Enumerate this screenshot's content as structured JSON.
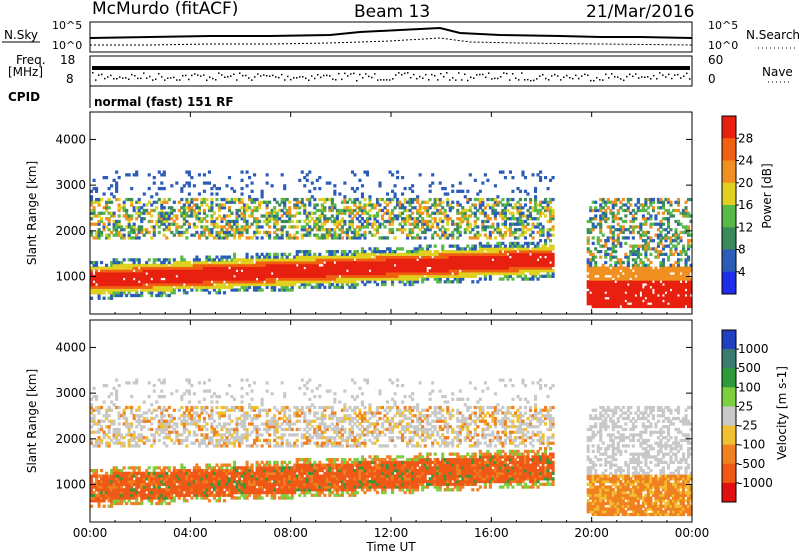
{
  "header": {
    "station": "McMurdo (fitACF)",
    "beam": "Beam 13",
    "date": "21/Mar/2016"
  },
  "noise_panel": {
    "left_label": "N.Sky",
    "right_label": "N.Search",
    "left_ticks": [
      "10^5",
      "10^0"
    ],
    "right_ticks": [
      "10^5",
      "10^0"
    ]
  },
  "freq_panel": {
    "label_line1": "Freq.",
    "label_line2": "[MHz]",
    "left_ticks": [
      "18",
      "8"
    ],
    "right_label": "Nave",
    "right_ticks": [
      "60",
      "0"
    ]
  },
  "cpid": {
    "label": "CPID",
    "value": "normal (fast) 151 RF"
  },
  "chart_data": [
    {
      "type": "heatmap",
      "panel": "power",
      "ylabel": "Slant Range [km]",
      "ylim": [
        180,
        4600
      ],
      "yticks": [
        1000,
        2000,
        3000,
        4000
      ],
      "xlim": [
        0,
        24
      ],
      "colorbar_label": "Power [dB]",
      "colorbar_ticks": [
        "4",
        "8",
        "12",
        "16",
        "20",
        "24",
        "28"
      ],
      "colors": [
        "#1f2ee8",
        "#2a5cb8",
        "#3a8a5a",
        "#58b848",
        "#e0d020",
        "#f09020",
        "#f06010",
        "#e82010"
      ],
      "bands": [
        {
          "t": [
            0.0,
            18.3
          ],
          "r": [
            620,
            1500
          ],
          "desc": "strong band rising"
        },
        {
          "t": [
            0.0,
            18.3
          ],
          "r": [
            1800,
            2700
          ],
          "desc": "upper layer"
        },
        {
          "t": [
            20.5,
            24.0
          ],
          "r": [
            300,
            1400
          ],
          "desc": "late strong band"
        }
      ]
    },
    {
      "type": "heatmap",
      "panel": "velocity",
      "ylabel": "Slant Range [km]",
      "ylim": [
        180,
        4600
      ],
      "yticks": [
        1000,
        2000,
        3000,
        4000
      ],
      "xlim": [
        0,
        24
      ],
      "xticks": [
        "00:00",
        "04:00",
        "08:00",
        "12:00",
        "16:00",
        "20:00",
        "00:00"
      ],
      "xlabel": "Time UT",
      "colorbar_label": "Velocity [m s-1]",
      "colorbar_ticks": [
        "1000",
        "500",
        "100",
        "25",
        "-25",
        "-100",
        "-500",
        "-1000"
      ],
      "colors": [
        "#2040c0",
        "#3a7a70",
        "#2e9a3a",
        "#7ecf40",
        "#c8c8c8",
        "#f0c030",
        "#f08020",
        "#f05818",
        "#e01010"
      ]
    }
  ]
}
